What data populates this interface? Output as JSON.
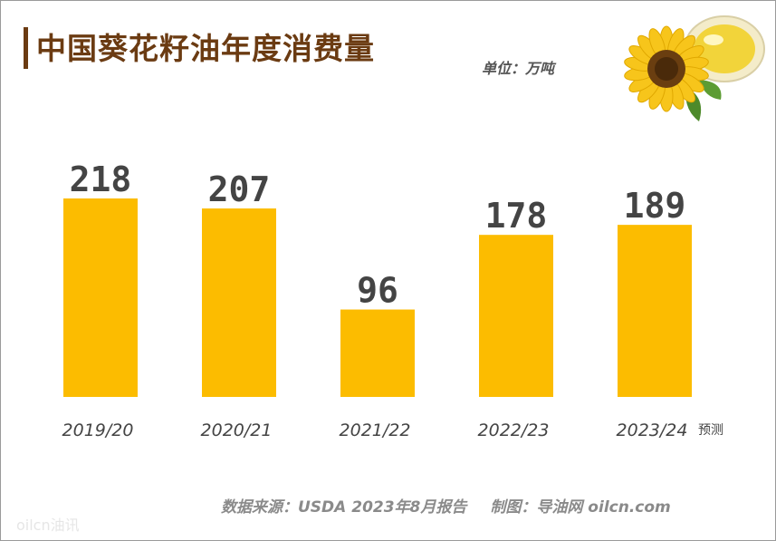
{
  "title": "中国葵花籽油年度消费量",
  "unit": "单位：万吨",
  "chart_data": {
    "type": "bar",
    "title": "中国葵花籽油年度消费量",
    "categories": [
      "2019/20",
      "2020/21",
      "2021/22",
      "2022/23",
      "2023/24"
    ],
    "values": [
      218,
      207,
      96,
      178,
      189
    ],
    "category_notes": [
      "",
      "",
      "",
      "",
      "预测"
    ],
    "ylabel": "",
    "ylim": [
      0,
      218
    ],
    "grid": false,
    "bar_color": "#fcbc00",
    "label_color": "#444444"
  },
  "source": {
    "data": "数据来源：USDA 2023年8月报告",
    "maker": "制图：导油网 oilcn.com"
  },
  "watermark": "oilcn油讯",
  "colors": {
    "title": "#6b3b12",
    "bar": "#fcbc00",
    "text": "#444444"
  }
}
